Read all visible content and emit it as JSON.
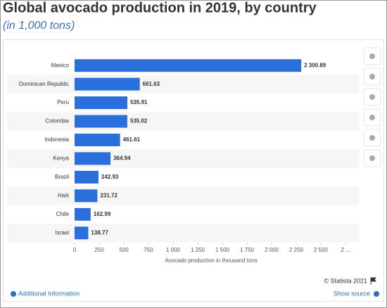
{
  "chart_data": {
    "type": "barh",
    "title": "Global avocado production in 2019, by country",
    "subtitle": "(in 1,000 tons)",
    "categories": [
      "Mexico",
      "Dominican Republic",
      "Peru",
      "Colombia",
      "Indonesia",
      "Kenya",
      "Brazil",
      "Haiti",
      "Chile",
      "Israel"
    ],
    "values": [
      2300.89,
      661.63,
      535.91,
      535.02,
      461.61,
      364.94,
      242.93,
      231.72,
      162.99,
      138.77
    ],
    "value_labels": [
      "2 300.89",
      "661.63",
      "535.91",
      "535.02",
      "461.61",
      "364.94",
      "242.93",
      "231.72",
      "162.99",
      "138.77"
    ],
    "color": "#2b6fdc",
    "xlim": [
      0,
      2750
    ],
    "xticks": [
      0,
      250,
      500,
      750,
      {
        "value": 1000,
        "label": "1 000"
      },
      {
        "value": 1250,
        "label": "1 250"
      },
      {
        "value": 1500,
        "label": "1 500"
      },
      {
        "value": 1750,
        "label": "1 750"
      },
      {
        "value": 2000,
        "label": "2 000"
      },
      {
        "value": 2250,
        "label": "2 250"
      },
      {
        "value": 2500,
        "label": "2 500"
      },
      {
        "value": 2750,
        "label": "2 ..."
      }
    ],
    "xlabel": "Avocado production in thousand tons",
    "copyright": "© Statista 2021",
    "additional_info": "Additional Information",
    "show_source": "Show source"
  }
}
